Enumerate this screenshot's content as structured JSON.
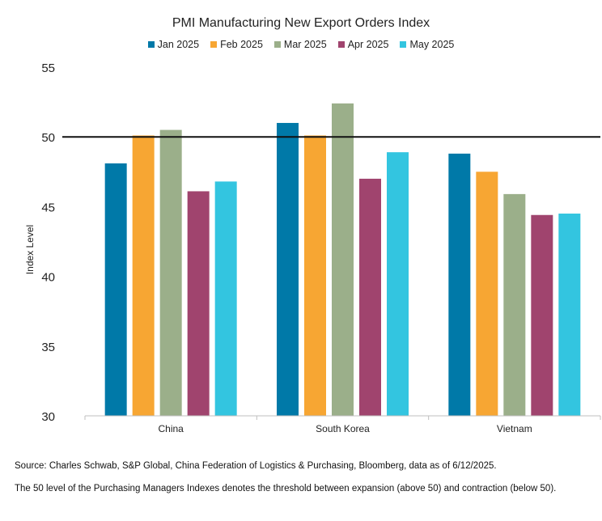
{
  "chart_data": {
    "type": "bar",
    "title": "PMI Manufacturing New Export Orders Index",
    "ylabel": "Index Level",
    "xlabel": "",
    "ylim": [
      30,
      55
    ],
    "yticks": [
      30,
      35,
      40,
      45,
      50,
      55
    ],
    "reference_line": 50,
    "categories": [
      "China",
      "South Korea",
      "Vietnam"
    ],
    "series": [
      {
        "name": "Jan 2025",
        "color": "#0079A8",
        "values": [
          48.1,
          51.0,
          48.8
        ]
      },
      {
        "name": "Feb 2025",
        "color": "#F7A633",
        "values": [
          50.1,
          50.1,
          47.5
        ]
      },
      {
        "name": "Mar 2025",
        "color": "#9BAF8A",
        "values": [
          50.5,
          52.4,
          45.9
        ]
      },
      {
        "name": "Apr 2025",
        "color": "#A0446E",
        "values": [
          46.1,
          47.0,
          44.4
        ]
      },
      {
        "name": "May 2025",
        "color": "#33C5E0",
        "values": [
          46.8,
          48.9,
          44.5
        ]
      }
    ],
    "legend_position": "top-center",
    "grid": false
  },
  "notes": {
    "source": "Source: Charles Schwab, S&P Global, China Federation of Logistics & Purchasing, Bloomberg, data as of 6/12/2025.",
    "footnote": "The 50 level of the Purchasing Managers Indexes denotes the threshold between expansion (above 50) and contraction (below 50)."
  }
}
